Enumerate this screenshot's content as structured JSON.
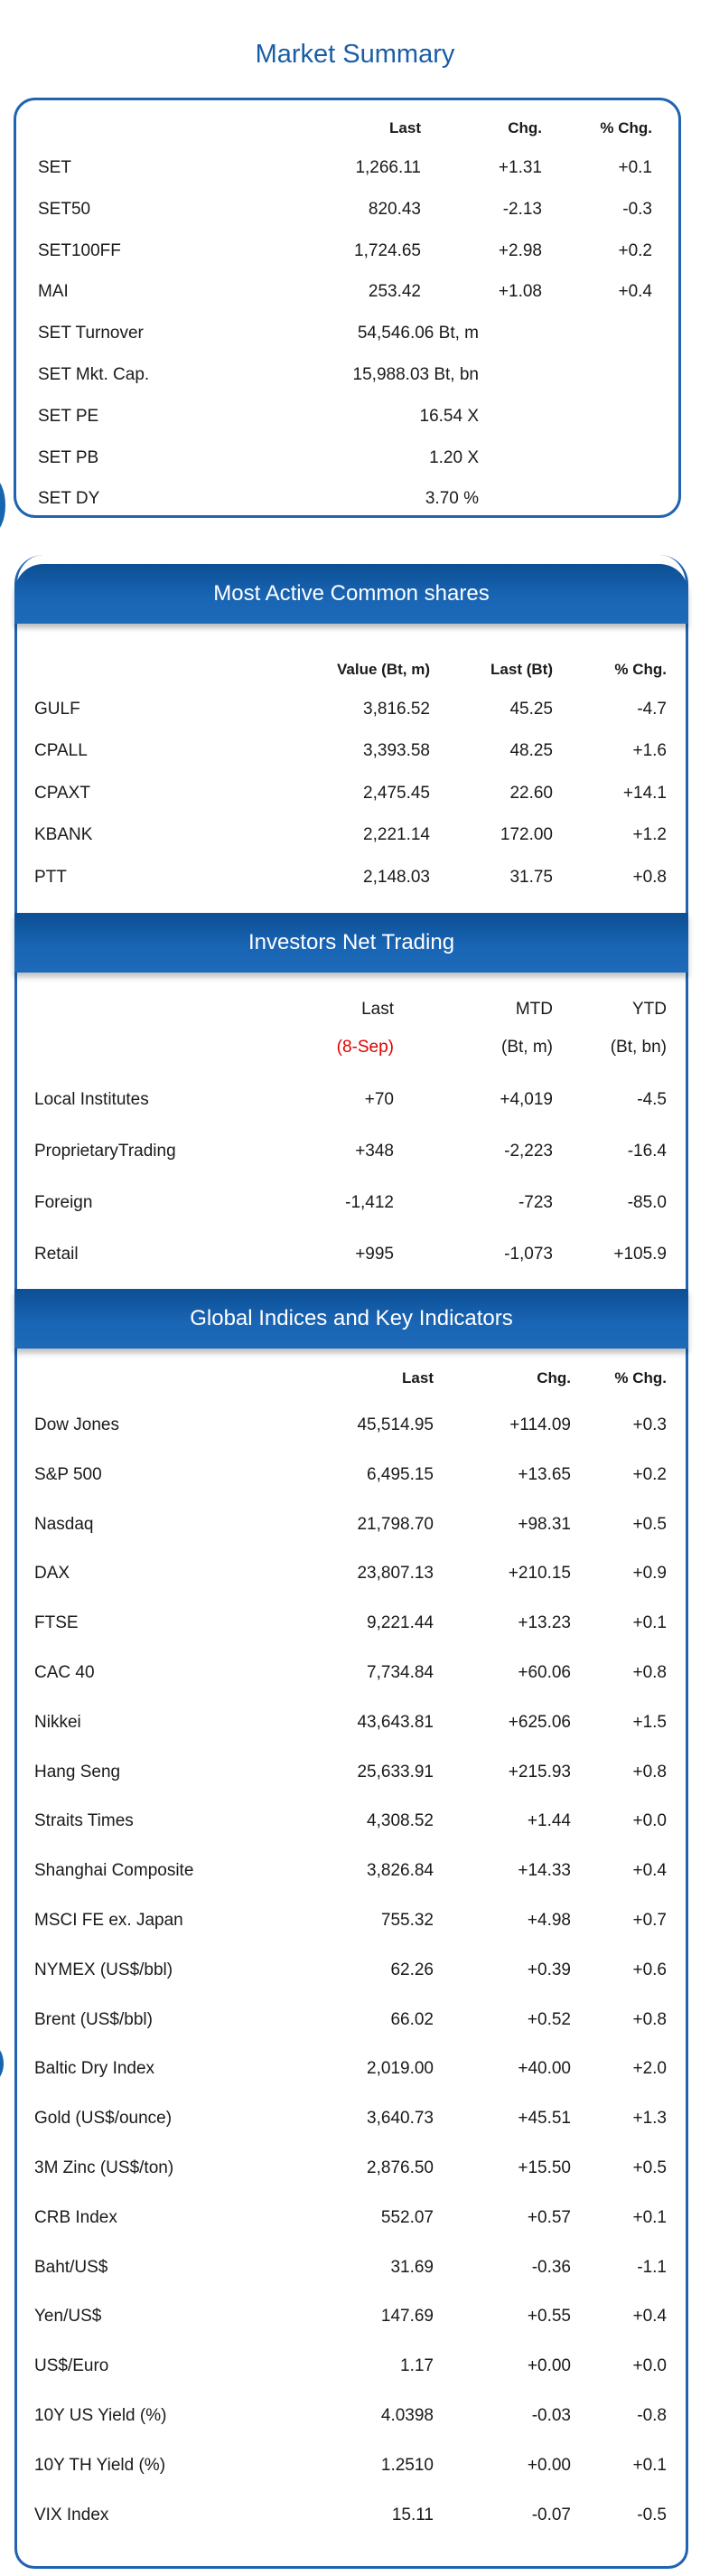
{
  "market_summary": {
    "title": "Market Summary",
    "columns": [
      "Last",
      "Chg.",
      "% Chg."
    ],
    "rows": [
      {
        "name": "SET",
        "last": "1,266.11",
        "chg": "+1.31",
        "pct": "+0.1"
      },
      {
        "name": "SET50",
        "last": "820.43",
        "chg": "-2.13",
        "pct": "-0.3"
      },
      {
        "name": "SET100FF",
        "last": "1,724.65",
        "chg": "+2.98",
        "pct": "+0.2"
      },
      {
        "name": "MAI",
        "last": "253.42",
        "chg": "+1.08",
        "pct": "+0.4"
      },
      {
        "name": "SET Turnover",
        "last": "54,546.06 Bt, m",
        "chg": "",
        "pct": ""
      },
      {
        "name": "SET Mkt. Cap.",
        "last": "15,988.03 Bt, bn",
        "chg": "",
        "pct": ""
      },
      {
        "name": "SET PE",
        "last": "16.54 X",
        "chg": "",
        "pct": ""
      },
      {
        "name": "SET PB",
        "last": "1.20 X",
        "chg": "",
        "pct": ""
      },
      {
        "name": "SET DY",
        "last": "3.70 %",
        "chg": "",
        "pct": ""
      }
    ]
  },
  "most_active": {
    "title": "Most Active Common shares",
    "columns": [
      "Value (Bt, m)",
      "Last (Bt)",
      "% Chg."
    ],
    "rows": [
      {
        "name": "GULF",
        "value": "3,816.52",
        "last": "45.25",
        "pct": "-4.7"
      },
      {
        "name": "CPALL",
        "value": "3,393.58",
        "last": "48.25",
        "pct": "+1.6"
      },
      {
        "name": "CPAXT",
        "value": "2,475.45",
        "last": "22.60",
        "pct": "+14.1"
      },
      {
        "name": "KBANK",
        "value": "2,221.14",
        "last": "172.00",
        "pct": "+1.2"
      },
      {
        "name": "PTT",
        "value": "2,148.03",
        "last": "31.75",
        "pct": "+0.8"
      }
    ]
  },
  "investors": {
    "title": "Investors Net Trading",
    "columns": [
      "Last",
      "MTD",
      "YTD"
    ],
    "subcolumns": [
      "(8-Sep)",
      "(Bt, m)",
      "(Bt, bn)"
    ],
    "rows": [
      {
        "name": "Local Institutes",
        "last": "+70",
        "mtd": "+4,019",
        "ytd": "-4.5"
      },
      {
        "name": "ProprietaryTrading",
        "last": "+348",
        "mtd": "-2,223",
        "ytd": "-16.4"
      },
      {
        "name": "Foreign",
        "last": "-1,412",
        "mtd": "-723",
        "ytd": "-85.0"
      },
      {
        "name": "Retail",
        "last": "+995",
        "mtd": "-1,073",
        "ytd": "+105.9"
      }
    ]
  },
  "global": {
    "title": "Global Indices and Key Indicators",
    "columns": [
      "Last",
      "Chg.",
      "% Chg."
    ],
    "rows": [
      {
        "name": "Dow Jones",
        "last": "45,514.95",
        "chg": "+114.09",
        "pct": "+0.3"
      },
      {
        "name": "S&P 500",
        "last": "6,495.15",
        "chg": "+13.65",
        "pct": "+0.2"
      },
      {
        "name": "Nasdaq",
        "last": "21,798.70",
        "chg": "+98.31",
        "pct": "+0.5"
      },
      {
        "name": "DAX",
        "last": "23,807.13",
        "chg": "+210.15",
        "pct": "+0.9"
      },
      {
        "name": "FTSE",
        "last": "9,221.44",
        "chg": "+13.23",
        "pct": "+0.1"
      },
      {
        "name": "CAC 40",
        "last": "7,734.84",
        "chg": "+60.06",
        "pct": "+0.8"
      },
      {
        "name": "Nikkei",
        "last": "43,643.81",
        "chg": "+625.06",
        "pct": "+1.5"
      },
      {
        "name": "Hang Seng",
        "last": "25,633.91",
        "chg": "+215.93",
        "pct": "+0.8"
      },
      {
        "name": "Straits Times",
        "last": "4,308.52",
        "chg": "+1.44",
        "pct": "+0.0"
      },
      {
        "name": "Shanghai Composite",
        "last": "3,826.84",
        "chg": "+14.33",
        "pct": "+0.4"
      },
      {
        "name": "MSCI FE ex. Japan",
        "last": "755.32",
        "chg": "+4.98",
        "pct": "+0.7"
      },
      {
        "name": "NYMEX (US$/bbl)",
        "last": "62.26",
        "chg": "+0.39",
        "pct": "+0.6"
      },
      {
        "name": "Brent (US$/bbl)",
        "last": "66.02",
        "chg": "+0.52",
        "pct": "+0.8"
      },
      {
        "name": "Baltic Dry Index",
        "last": "2,019.00",
        "chg": "+40.00",
        "pct": "+2.0"
      },
      {
        "name": "Gold (US$/ounce)",
        "last": "3,640.73",
        "chg": "+45.51",
        "pct": "+1.3"
      },
      {
        "name": "3M Zinc (US$/ton)",
        "last": "2,876.50",
        "chg": "+15.50",
        "pct": "+0.5"
      },
      {
        "name": "CRB Index",
        "last": "552.07",
        "chg": "+0.57",
        "pct": "+0.1"
      },
      {
        "name": "Baht/US$",
        "last": "31.69",
        "chg": "-0.36",
        "pct": "-1.1"
      },
      {
        "name": "Yen/US$",
        "last": "147.69",
        "chg": "+0.55",
        "pct": "+0.4"
      },
      {
        "name": "US$/Euro",
        "last": "1.17",
        "chg": "+0.00",
        "pct": "+0.0"
      },
      {
        "name": "10Y US Yield (%)",
        "last": "4.0398",
        "chg": "-0.03",
        "pct": "-0.8"
      },
      {
        "name": "10Y TH Yield (%)",
        "last": "1.2510",
        "chg": "+0.00",
        "pct": "+0.1"
      },
      {
        "name": "VIX Index",
        "last": "15.11",
        "chg": "-0.07",
        "pct": "-0.5"
      }
    ]
  },
  "colors": {
    "accent": "#1f63b1",
    "band": "#1a66b6",
    "highlight": "#e00000"
  }
}
